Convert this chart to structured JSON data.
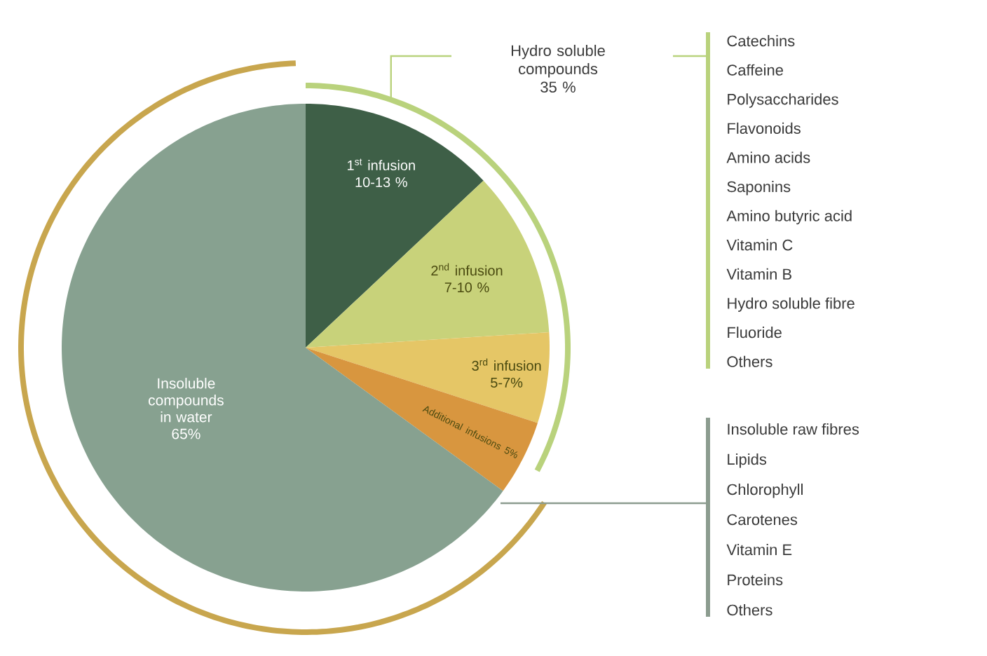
{
  "chart_data": {
    "type": "pie",
    "categories": [
      "1$^{st}$ infusion 10-13 %",
      "2$^{nd}$ infusion 7-10 %",
      "3$^{rd}$ infusion 5-7%",
      "Additional infusions 5%",
      "Insoluble compounds in water 65%"
    ],
    "values": [
      13,
      11,
      6,
      5,
      65
    ],
    "colors": [
      "#3e5f47",
      "#c8d27a",
      "#e5c666",
      "#d8963f",
      "#87a190"
    ],
    "annotations": [
      "Hydro soluble compounds 35 %",
      "Catechins",
      "Caffeine",
      "Polysaccharides",
      "Flavonoids",
      "Amino acids",
      "Saponins",
      "Amino butyric acid",
      "Vitamin C",
      "Vitamin B",
      "Hydro soluble fibre",
      "Fluoride",
      "Others",
      "Insoluble raw fibres",
      "Lipids",
      "Chlorophyll",
      "Carotenes",
      "Vitamin E",
      "Proteins",
      "Others"
    ]
  }
}
